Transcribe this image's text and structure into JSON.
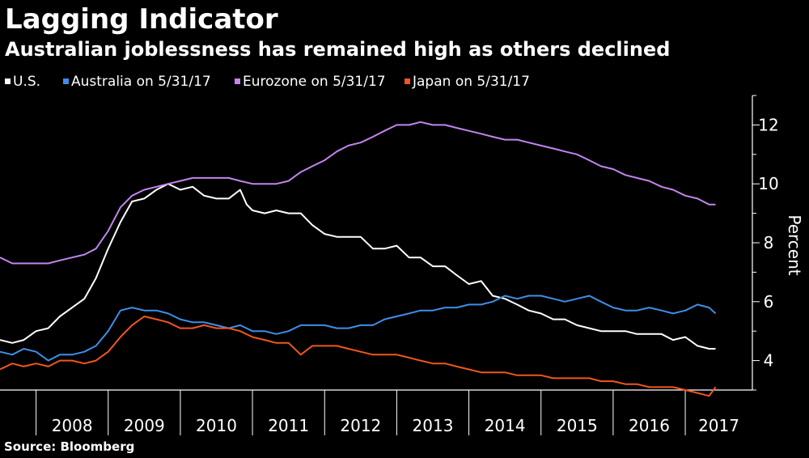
{
  "chart_data": {
    "type": "line",
    "title": "Lagging Indicator",
    "subtitle": "Australian joblessness has remained high as others declined",
    "ylabel": "Percent",
    "source": "Source: Bloomberg",
    "ylim": [
      3,
      13
    ],
    "yticks": [
      4,
      6,
      8,
      10,
      12
    ],
    "xlim": [
      2007.5,
      2017.93
    ],
    "xticks": [
      "2008",
      "2009",
      "2010",
      "2011",
      "2012",
      "2013",
      "2014",
      "2015",
      "2016",
      "2017"
    ],
    "grid": false,
    "legend_position": "top-left",
    "series": [
      {
        "name": "U.S.",
        "color": "#ffffff",
        "points": [
          [
            2007.5,
            4.7
          ],
          [
            2007.67,
            4.6
          ],
          [
            2007.83,
            4.7
          ],
          [
            2008.0,
            5.0
          ],
          [
            2008.17,
            5.1
          ],
          [
            2008.33,
            5.5
          ],
          [
            2008.5,
            5.8
          ],
          [
            2008.67,
            6.1
          ],
          [
            2008.83,
            6.8
          ],
          [
            2009.0,
            7.8
          ],
          [
            2009.17,
            8.7
          ],
          [
            2009.33,
            9.4
          ],
          [
            2009.5,
            9.5
          ],
          [
            2009.67,
            9.8
          ],
          [
            2009.83,
            10.0
          ],
          [
            2010.0,
            9.8
          ],
          [
            2010.17,
            9.9
          ],
          [
            2010.33,
            9.6
          ],
          [
            2010.5,
            9.5
          ],
          [
            2010.67,
            9.5
          ],
          [
            2010.83,
            9.8
          ],
          [
            2010.92,
            9.3
          ],
          [
            2011.0,
            9.1
          ],
          [
            2011.17,
            9.0
          ],
          [
            2011.33,
            9.1
          ],
          [
            2011.5,
            9.0
          ],
          [
            2011.67,
            9.0
          ],
          [
            2011.83,
            8.6
          ],
          [
            2012.0,
            8.3
          ],
          [
            2012.17,
            8.2
          ],
          [
            2012.33,
            8.2
          ],
          [
            2012.5,
            8.2
          ],
          [
            2012.67,
            7.8
          ],
          [
            2012.83,
            7.8
          ],
          [
            2013.0,
            7.9
          ],
          [
            2013.17,
            7.5
          ],
          [
            2013.33,
            7.5
          ],
          [
            2013.5,
            7.2
          ],
          [
            2013.67,
            7.2
          ],
          [
            2013.83,
            6.9
          ],
          [
            2014.0,
            6.6
          ],
          [
            2014.17,
            6.7
          ],
          [
            2014.33,
            6.2
          ],
          [
            2014.5,
            6.1
          ],
          [
            2014.67,
            5.9
          ],
          [
            2014.83,
            5.7
          ],
          [
            2015.0,
            5.6
          ],
          [
            2015.17,
            5.4
          ],
          [
            2015.33,
            5.4
          ],
          [
            2015.5,
            5.2
          ],
          [
            2015.67,
            5.1
          ],
          [
            2015.83,
            5.0
          ],
          [
            2016.0,
            5.0
          ],
          [
            2016.17,
            5.0
          ],
          [
            2016.33,
            4.9
          ],
          [
            2016.5,
            4.9
          ],
          [
            2016.67,
            4.9
          ],
          [
            2016.83,
            4.7
          ],
          [
            2017.0,
            4.8
          ],
          [
            2017.17,
            4.5
          ],
          [
            2017.33,
            4.4
          ],
          [
            2017.42,
            4.4
          ]
        ]
      },
      {
        "name": "Australia  on 5/31/17",
        "color": "#3d8fe8",
        "points": [
          [
            2007.5,
            4.3
          ],
          [
            2007.67,
            4.2
          ],
          [
            2007.83,
            4.4
          ],
          [
            2008.0,
            4.3
          ],
          [
            2008.17,
            4.0
          ],
          [
            2008.33,
            4.2
          ],
          [
            2008.5,
            4.2
          ],
          [
            2008.67,
            4.3
          ],
          [
            2008.83,
            4.5
          ],
          [
            2009.0,
            5.0
          ],
          [
            2009.17,
            5.7
          ],
          [
            2009.33,
            5.8
          ],
          [
            2009.5,
            5.7
          ],
          [
            2009.67,
            5.7
          ],
          [
            2009.83,
            5.6
          ],
          [
            2010.0,
            5.4
          ],
          [
            2010.17,
            5.3
          ],
          [
            2010.33,
            5.3
          ],
          [
            2010.5,
            5.2
          ],
          [
            2010.67,
            5.1
          ],
          [
            2010.83,
            5.2
          ],
          [
            2011.0,
            5.0
          ],
          [
            2011.17,
            5.0
          ],
          [
            2011.33,
            4.9
          ],
          [
            2011.5,
            5.0
          ],
          [
            2011.67,
            5.2
          ],
          [
            2011.83,
            5.2
          ],
          [
            2012.0,
            5.2
          ],
          [
            2012.17,
            5.1
          ],
          [
            2012.33,
            5.1
          ],
          [
            2012.5,
            5.2
          ],
          [
            2012.67,
            5.2
          ],
          [
            2012.83,
            5.4
          ],
          [
            2013.0,
            5.5
          ],
          [
            2013.17,
            5.6
          ],
          [
            2013.33,
            5.7
          ],
          [
            2013.5,
            5.7
          ],
          [
            2013.67,
            5.8
          ],
          [
            2013.83,
            5.8
          ],
          [
            2014.0,
            5.9
          ],
          [
            2014.17,
            5.9
          ],
          [
            2014.33,
            6.0
          ],
          [
            2014.5,
            6.2
          ],
          [
            2014.67,
            6.1
          ],
          [
            2014.83,
            6.2
          ],
          [
            2015.0,
            6.2
          ],
          [
            2015.17,
            6.1
          ],
          [
            2015.33,
            6.0
          ],
          [
            2015.5,
            6.1
          ],
          [
            2015.67,
            6.2
          ],
          [
            2015.83,
            6.0
          ],
          [
            2016.0,
            5.8
          ],
          [
            2016.17,
            5.7
          ],
          [
            2016.33,
            5.7
          ],
          [
            2016.5,
            5.8
          ],
          [
            2016.67,
            5.7
          ],
          [
            2016.83,
            5.6
          ],
          [
            2017.0,
            5.7
          ],
          [
            2017.17,
            5.9
          ],
          [
            2017.33,
            5.8
          ],
          [
            2017.42,
            5.6
          ]
        ]
      },
      {
        "name": "Eurozone on 5/31/17",
        "color": "#c285ee",
        "points": [
          [
            2007.5,
            7.5
          ],
          [
            2007.67,
            7.3
          ],
          [
            2007.83,
            7.3
          ],
          [
            2008.0,
            7.3
          ],
          [
            2008.17,
            7.3
          ],
          [
            2008.33,
            7.4
          ],
          [
            2008.5,
            7.5
          ],
          [
            2008.67,
            7.6
          ],
          [
            2008.83,
            7.8
          ],
          [
            2009.0,
            8.4
          ],
          [
            2009.17,
            9.2
          ],
          [
            2009.33,
            9.6
          ],
          [
            2009.5,
            9.8
          ],
          [
            2009.67,
            9.9
          ],
          [
            2009.83,
            10.0
          ],
          [
            2010.0,
            10.1
          ],
          [
            2010.17,
            10.2
          ],
          [
            2010.33,
            10.2
          ],
          [
            2010.5,
            10.2
          ],
          [
            2010.67,
            10.2
          ],
          [
            2010.83,
            10.1
          ],
          [
            2011.0,
            10.0
          ],
          [
            2011.17,
            10.0
          ],
          [
            2011.33,
            10.0
          ],
          [
            2011.5,
            10.1
          ],
          [
            2011.67,
            10.4
          ],
          [
            2011.83,
            10.6
          ],
          [
            2012.0,
            10.8
          ],
          [
            2012.17,
            11.1
          ],
          [
            2012.33,
            11.3
          ],
          [
            2012.5,
            11.4
          ],
          [
            2012.67,
            11.6
          ],
          [
            2012.83,
            11.8
          ],
          [
            2013.0,
            12.0
          ],
          [
            2013.17,
            12.0
          ],
          [
            2013.33,
            12.1
          ],
          [
            2013.5,
            12.0
          ],
          [
            2013.67,
            12.0
          ],
          [
            2013.83,
            11.9
          ],
          [
            2014.0,
            11.8
          ],
          [
            2014.17,
            11.7
          ],
          [
            2014.33,
            11.6
          ],
          [
            2014.5,
            11.5
          ],
          [
            2014.67,
            11.5
          ],
          [
            2014.83,
            11.4
          ],
          [
            2015.0,
            11.3
          ],
          [
            2015.17,
            11.2
          ],
          [
            2015.33,
            11.1
          ],
          [
            2015.5,
            11.0
          ],
          [
            2015.67,
            10.8
          ],
          [
            2015.83,
            10.6
          ],
          [
            2016.0,
            10.5
          ],
          [
            2016.17,
            10.3
          ],
          [
            2016.33,
            10.2
          ],
          [
            2016.5,
            10.1
          ],
          [
            2016.67,
            9.9
          ],
          [
            2016.83,
            9.8
          ],
          [
            2017.0,
            9.6
          ],
          [
            2017.17,
            9.5
          ],
          [
            2017.33,
            9.3
          ],
          [
            2017.42,
            9.3
          ]
        ]
      },
      {
        "name": "Japan on 5/31/17",
        "color": "#f0561f",
        "points": [
          [
            2007.5,
            3.7
          ],
          [
            2007.67,
            3.9
          ],
          [
            2007.83,
            3.8
          ],
          [
            2008.0,
            3.9
          ],
          [
            2008.17,
            3.8
          ],
          [
            2008.33,
            4.0
          ],
          [
            2008.5,
            4.0
          ],
          [
            2008.67,
            3.9
          ],
          [
            2008.83,
            4.0
          ],
          [
            2009.0,
            4.3
          ],
          [
            2009.17,
            4.8
          ],
          [
            2009.33,
            5.2
          ],
          [
            2009.5,
            5.5
          ],
          [
            2009.67,
            5.4
          ],
          [
            2009.83,
            5.3
          ],
          [
            2010.0,
            5.1
          ],
          [
            2010.17,
            5.1
          ],
          [
            2010.33,
            5.2
          ],
          [
            2010.5,
            5.1
          ],
          [
            2010.67,
            5.1
          ],
          [
            2010.83,
            5.0
          ],
          [
            2011.0,
            4.8
          ],
          [
            2011.17,
            4.7
          ],
          [
            2011.33,
            4.6
          ],
          [
            2011.5,
            4.6
          ],
          [
            2011.67,
            4.2
          ],
          [
            2011.83,
            4.5
          ],
          [
            2012.0,
            4.5
          ],
          [
            2012.17,
            4.5
          ],
          [
            2012.33,
            4.4
          ],
          [
            2012.5,
            4.3
          ],
          [
            2012.67,
            4.2
          ],
          [
            2012.83,
            4.2
          ],
          [
            2013.0,
            4.2
          ],
          [
            2013.17,
            4.1
          ],
          [
            2013.33,
            4.0
          ],
          [
            2013.5,
            3.9
          ],
          [
            2013.67,
            3.9
          ],
          [
            2013.83,
            3.8
          ],
          [
            2014.0,
            3.7
          ],
          [
            2014.17,
            3.6
          ],
          [
            2014.33,
            3.6
          ],
          [
            2014.5,
            3.6
          ],
          [
            2014.67,
            3.5
          ],
          [
            2014.83,
            3.5
          ],
          [
            2015.0,
            3.5
          ],
          [
            2015.17,
            3.4
          ],
          [
            2015.33,
            3.4
          ],
          [
            2015.5,
            3.4
          ],
          [
            2015.67,
            3.4
          ],
          [
            2015.83,
            3.3
          ],
          [
            2016.0,
            3.3
          ],
          [
            2016.17,
            3.2
          ],
          [
            2016.33,
            3.2
          ],
          [
            2016.5,
            3.1
          ],
          [
            2016.67,
            3.1
          ],
          [
            2016.83,
            3.1
          ],
          [
            2017.0,
            3.0
          ],
          [
            2017.17,
            2.9
          ],
          [
            2017.33,
            2.8
          ],
          [
            2017.42,
            3.1
          ]
        ]
      }
    ]
  }
}
